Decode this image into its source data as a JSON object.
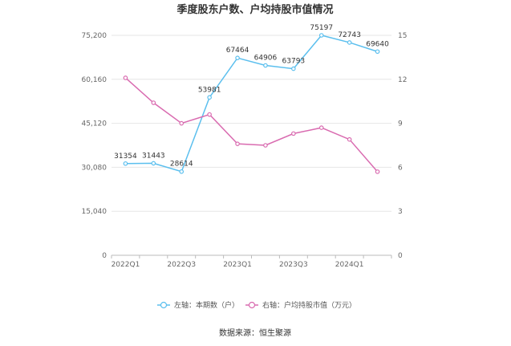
{
  "chart_data": {
    "type": "line",
    "title": "季度股东户数、户均持股市值情况",
    "categories": [
      "2022Q1",
      "2022Q2",
      "2022Q3",
      "2022Q4",
      "2023Q1",
      "2023Q2",
      "2023Q3",
      "2023Q4",
      "2024Q1",
      "2024Q2"
    ],
    "x_tick_labels": [
      "2022Q1",
      "2022Q3",
      "2023Q1",
      "2023Q3",
      "2024Q1"
    ],
    "left_axis": {
      "ticks": [
        "0",
        "15,040",
        "30,080",
        "45,120",
        "60,160",
        "75,200"
      ],
      "ylim": [
        0,
        75200
      ]
    },
    "right_axis": {
      "ticks": [
        "0",
        "3",
        "6",
        "9",
        "12",
        "15"
      ],
      "ylim": [
        0,
        15
      ]
    },
    "series": [
      {
        "name": "左轴：本期数（户）",
        "axis": "left",
        "color": "#5bbfee",
        "values": [
          31354,
          31443,
          28614,
          53981,
          67464,
          64906,
          63793,
          75197,
          72743,
          69640
        ],
        "labels": [
          "31354",
          "31443",
          "28614",
          "53981",
          "67464",
          "64906",
          "63793",
          "75197",
          "72743",
          "69640"
        ]
      },
      {
        "name": "右轴：户均持股市值（万元）",
        "axis": "right",
        "color": "#d96bb0",
        "values": [
          12.1,
          10.4,
          9.0,
          9.6,
          7.6,
          7.5,
          8.3,
          8.7,
          7.9,
          5.7
        ]
      }
    ],
    "grid": true,
    "legend_position": "bottom"
  },
  "source": "数据来源：恒生聚源"
}
